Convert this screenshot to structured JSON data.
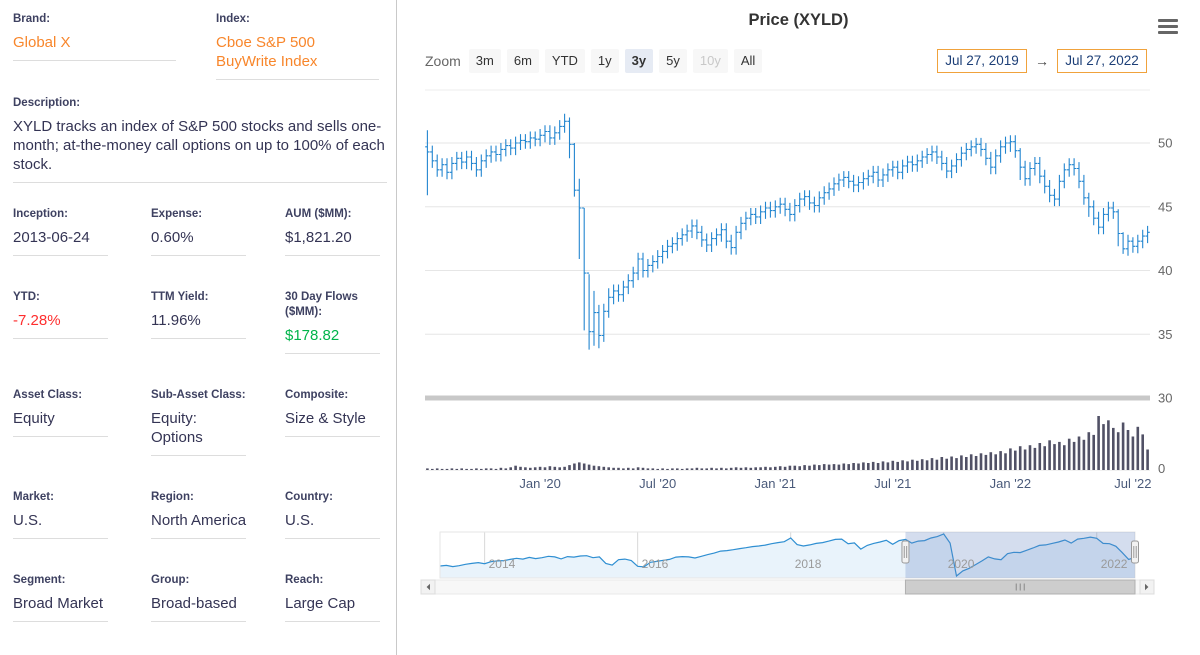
{
  "colors": {
    "accent_orange": "#f8862b",
    "date_box_border": "#f0a23c",
    "negative_red": "#fe2e2e",
    "positive_green": "#00b44a",
    "price_blue": "#2386d0",
    "volume_slate": "#515166",
    "grid_gray": "#e6e6e6",
    "resizer_gray": "#c8c8c8"
  },
  "left_panel": {
    "rows": [
      {
        "layout": "two-col",
        "fields": [
          {
            "label": "Brand:",
            "value": "Global X",
            "variant": "link"
          },
          {
            "label": "Index:",
            "value": "Cboe S&P 500 BuyWrite Index",
            "variant": "link"
          }
        ]
      },
      {
        "layout": "full",
        "fields": [
          {
            "label": "Description:",
            "value": "XYLD tracks an index of S&P 500 stocks and sells one-month; at-the-money call options on up to 100% of each stock."
          }
        ]
      },
      {
        "layout": "three-col",
        "fields": [
          {
            "label": "Inception:",
            "value": "2013-06-24"
          },
          {
            "label": "Expense:",
            "value": "0.60%"
          },
          {
            "label": "AUM ($MM):",
            "value": "$1,821.20"
          }
        ]
      },
      {
        "layout": "three-col",
        "fields": [
          {
            "label": "YTD:",
            "value": "-7.28%",
            "variant": "negative"
          },
          {
            "label": "TTM Yield:",
            "value": "11.96%"
          },
          {
            "label": "30 Day Flows ($MM):",
            "value": "$178.82",
            "variant": "positive"
          }
        ]
      },
      {
        "layout": "three-col",
        "fields": [
          {
            "label": "Asset Class:",
            "value": "Equity"
          },
          {
            "label": "Sub-Asset Class:",
            "value": "Equity: Options"
          },
          {
            "label": "Composite:",
            "value": "Size & Style"
          }
        ]
      },
      {
        "layout": "three-col",
        "fields": [
          {
            "label": "Market:",
            "value": "U.S."
          },
          {
            "label": "Region:",
            "value": "North America"
          },
          {
            "label": "Country:",
            "value": "U.S."
          }
        ]
      },
      {
        "layout": "three-col",
        "fields": [
          {
            "label": "Segment:",
            "value": "Broad Market"
          },
          {
            "label": "Group:",
            "value": "Broad-based"
          },
          {
            "label": "Reach:",
            "value": "Large Cap"
          }
        ]
      }
    ]
  },
  "chart": {
    "title": "Price (XYLD)",
    "menu_icon": "hamburger-icon",
    "zoom_label": "Zoom",
    "zoom_buttons": [
      {
        "label": "3m"
      },
      {
        "label": "6m"
      },
      {
        "label": "YTD"
      },
      {
        "label": "1y"
      },
      {
        "label": "3y",
        "selected": true
      },
      {
        "label": "5y"
      },
      {
        "label": "10y",
        "disabled": true
      },
      {
        "label": "All"
      }
    ],
    "date_from": "Jul 27, 2019",
    "range_arrow": "→",
    "date_to": "Jul 27, 2022"
  },
  "chart_data": {
    "type": "ohlc",
    "title": "Price (XYLD)",
    "interval": "weekly",
    "x_range": [
      "Jul 27, 2019",
      "Jul 27, 2022"
    ],
    "y_axis": {
      "ticks": [
        50,
        45,
        40,
        35,
        30
      ],
      "position": "right"
    },
    "volume_axis": {
      "ticks": [
        0
      ]
    },
    "x_ticks": [
      {
        "label": "Jan '20",
        "week": 23.5
      },
      {
        "label": "Jul '20",
        "week": 47.5
      },
      {
        "label": "Jan '21",
        "week": 71.5
      },
      {
        "label": "Jul '21",
        "week": 95.5
      },
      {
        "label": "Jan '22",
        "week": 119.5
      },
      {
        "label": "Jul '22",
        "week": 144.5
      }
    ],
    "weekly_close": [
      49.3,
      48.6,
      47.9,
      48.3,
      47.7,
      48.4,
      48.8,
      48.5,
      48.9,
      48.4,
      47.9,
      48.6,
      49.0,
      49.3,
      49.1,
      49.5,
      49.8,
      49.6,
      50.0,
      50.2,
      50.1,
      50.4,
      50.3,
      50.6,
      50.9,
      50.4,
      50.8,
      51.3,
      51.7,
      49.9,
      46.3,
      44.9,
      39.8,
      35.2,
      36.7,
      34.9,
      36.8,
      37.9,
      38.4,
      38.1,
      38.7,
      39.2,
      39.8,
      40.9,
      40.0,
      40.4,
      40.7,
      41.1,
      41.5,
      41.9,
      42.1,
      42.5,
      42.8,
      43.1,
      43.5,
      43.0,
      42.4,
      42.0,
      42.5,
      42.8,
      43.2,
      42.3,
      41.8,
      43.0,
      43.7,
      44.1,
      44.4,
      44.2,
      44.6,
      44.9,
      44.7,
      45.0,
      45.2,
      44.8,
      44.4,
      45.1,
      45.6,
      45.8,
      45.3,
      45.1,
      45.7,
      46.1,
      46.4,
      46.8,
      47.1,
      47.3,
      47.0,
      46.7,
      46.9,
      47.2,
      47.4,
      47.7,
      47.1,
      47.5,
      47.9,
      48.1,
      47.7,
      48.2,
      48.5,
      48.3,
      48.6,
      48.9,
      49.1,
      49.3,
      48.9,
      48.4,
      47.8,
      48.2,
      48.7,
      49.2,
      49.5,
      49.7,
      49.9,
      49.5,
      48.8,
      48.1,
      49.0,
      49.7,
      50.0,
      50.1,
      49.4,
      48.1,
      47.2,
      48.0,
      48.4,
      47.4,
      46.6,
      45.9,
      45.6,
      47.0,
      47.9,
      48.3,
      48.0,
      47.0,
      45.7,
      45.0,
      44.1,
      43.4,
      44.4,
      44.9,
      44.6,
      42.9,
      41.7,
      42.3,
      41.9,
      42.3,
      42.7,
      43.0
    ],
    "bar_half_range_default": 0.5,
    "week_high_low_overrides": {
      "0": [
        51.0,
        45.9
      ],
      "28": [
        52.3,
        50.8
      ],
      "29": [
        52.0,
        48.8
      ],
      "30": [
        50.0,
        45.8
      ],
      "31": [
        47.2,
        40.9
      ],
      "32": [
        44.9,
        35.3
      ],
      "33": [
        39.7,
        33.8
      ],
      "34": [
        38.4,
        34.1
      ],
      "35": [
        37.3,
        33.9
      ],
      "36": [
        37.4,
        34.4
      ],
      "37": [
        38.6,
        36.3
      ],
      "119": [
        50.6,
        49.3
      ],
      "121": [
        49.6,
        47.1
      ],
      "135": [
        46.1,
        44.2
      ],
      "141": [
        44.8,
        41.9
      ],
      "142": [
        43.0,
        41.3
      ],
      "144": [
        42.6,
        41.4
      ]
    },
    "volume_rel": [
      0.03,
      0.02,
      0.03,
      0.02,
      0.02,
      0.03,
      0.02,
      0.03,
      0.02,
      0.02,
      0.03,
      0.02,
      0.03,
      0.03,
      0.02,
      0.04,
      0.03,
      0.05,
      0.08,
      0.06,
      0.05,
      0.04,
      0.05,
      0.06,
      0.05,
      0.07,
      0.06,
      0.05,
      0.06,
      0.09,
      0.12,
      0.14,
      0.12,
      0.1,
      0.08,
      0.07,
      0.06,
      0.05,
      0.04,
      0.04,
      0.03,
      0.04,
      0.03,
      0.05,
      0.04,
      0.03,
      0.03,
      0.02,
      0.03,
      0.02,
      0.03,
      0.03,
      0.02,
      0.03,
      0.03,
      0.04,
      0.03,
      0.03,
      0.04,
      0.03,
      0.04,
      0.03,
      0.04,
      0.05,
      0.04,
      0.05,
      0.04,
      0.05,
      0.05,
      0.06,
      0.05,
      0.06,
      0.07,
      0.06,
      0.08,
      0.08,
      0.07,
      0.09,
      0.08,
      0.1,
      0.09,
      0.11,
      0.1,
      0.11,
      0.1,
      0.12,
      0.11,
      0.13,
      0.12,
      0.14,
      0.13,
      0.15,
      0.13,
      0.16,
      0.14,
      0.17,
      0.15,
      0.18,
      0.16,
      0.19,
      0.17,
      0.2,
      0.18,
      0.22,
      0.19,
      0.24,
      0.21,
      0.25,
      0.22,
      0.27,
      0.24,
      0.29,
      0.26,
      0.31,
      0.28,
      0.33,
      0.29,
      0.35,
      0.31,
      0.4,
      0.36,
      0.44,
      0.38,
      0.46,
      0.41,
      0.5,
      0.44,
      0.55,
      0.48,
      0.52,
      0.46,
      0.58,
      0.52,
      0.62,
      0.56,
      0.7,
      0.65,
      1.0,
      0.85,
      0.92,
      0.78,
      0.7,
      0.88,
      0.74,
      0.62,
      0.8,
      0.66,
      0.38
    ],
    "navigator": {
      "year_ticks": [
        {
          "label": "2014",
          "month": 7
        },
        {
          "label": "2016",
          "month": 31
        },
        {
          "label": "2018",
          "month": 55
        },
        {
          "label": "2020",
          "month": 79
        },
        {
          "label": "2022",
          "month": 103
        }
      ],
      "monthly_close": [
        40.0,
        40.2,
        39.8,
        40.1,
        40.6,
        40.9,
        41.2,
        40.8,
        41.5,
        41.8,
        41.9,
        42.3,
        42.7,
        42.4,
        43.0,
        42.6,
        42.9,
        43.4,
        43.2,
        42.5,
        43.3,
        43.1,
        43.5,
        43.6,
        42.9,
        43.2,
        40.9,
        40.3,
        42.2,
        42.4,
        41.9,
        39.9,
        39.7,
        41.3,
        41.6,
        42.0,
        42.3,
        43.1,
        43.3,
        43.2,
        42.8,
        43.4,
        44.0,
        44.5,
        45.2,
        45.4,
        45.7,
        46.1,
        46.4,
        46.8,
        47.0,
        47.3,
        47.8,
        48.2,
        48.5,
        49.8,
        47.5,
        47.0,
        47.4,
        47.9,
        48.2,
        48.7,
        49.3,
        49.4,
        47.8,
        48.1,
        45.9,
        47.2,
        47.9,
        48.4,
        49.0,
        47.6,
        48.9,
        49.3,
        48.0,
        48.7,
        48.9,
        49.8,
        50.3,
        51.2,
        48.0,
        36.5,
        38.3,
        39.2,
        40.5,
        41.8,
        43.2,
        42.5,
        42.2,
        44.3,
        44.8,
        44.7,
        45.5,
        46.3,
        47.2,
        47.4,
        47.9,
        48.4,
        49.1,
        48.0,
        49.4,
        49.7,
        50.1,
        49.7,
        47.9,
        47.8,
        46.9,
        44.7,
        42.3,
        43.0
      ],
      "selection_month_range": [
        73,
        109
      ]
    }
  }
}
